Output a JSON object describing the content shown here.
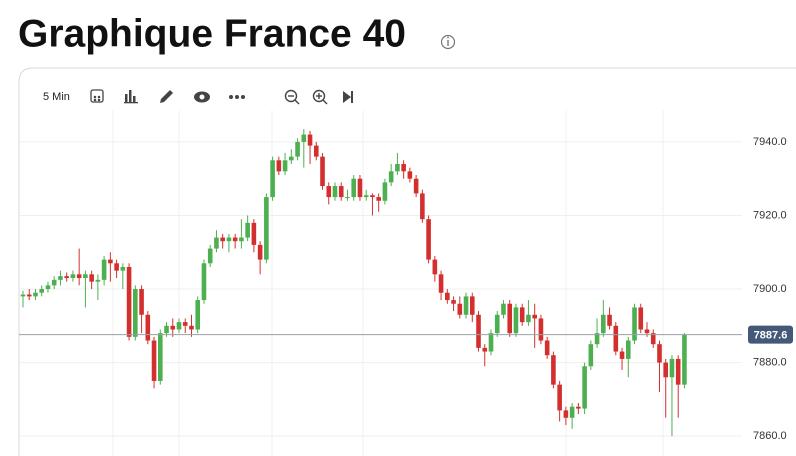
{
  "toolbar": {
    "interval": "5 Min"
  },
  "chart_data": {
    "type": "candlestick",
    "title": "Graphique France 40",
    "up_color": "#4caf50",
    "down_color": "#d32f2f",
    "ylim": [
      7854.6,
      7960.1
    ],
    "yticks": [
      {
        "value": 7860,
        "label": "7860.0"
      },
      {
        "value": 7880,
        "label": "7880.0"
      },
      {
        "value": 7900,
        "label": "7900.0"
      },
      {
        "value": 7920,
        "label": "7920.0"
      },
      {
        "value": 7940,
        "label": "7940.0"
      }
    ],
    "grid": true,
    "last_price": 7887.6,
    "open": [
      7898,
      7898.5,
      7898,
      7899,
      7900,
      7901,
      7902.5,
      7903.5,
      7903,
      7904,
      7903,
      7904,
      7902,
      7902.5,
      7908,
      7907,
      7905,
      7906,
      7887,
      7900,
      7893,
      7886,
      7875,
      7888,
      7890,
      7889,
      7891,
      7890,
      7889,
      7897,
      7907,
      7911,
      7914,
      7913,
      7914,
      7913,
      7914,
      7918,
      7912,
      7908,
      7925,
      7935,
      7932,
      7935,
      7936,
      7940,
      7942,
      7939,
      7936,
      7928,
      7925,
      7928,
      7925,
      7925,
      7930,
      7925,
      7925.5,
      7925,
      7924,
      7929,
      7932,
      7934,
      7932,
      7930,
      7926,
      7919,
      7908,
      7904,
      7899,
      7897,
      7896,
      7893,
      7898,
      7893,
      7884,
      7883,
      7888,
      7893,
      7896,
      7888,
      7895,
      7891,
      7893,
      7892,
      7886,
      7882,
      7874,
      7867,
      7865,
      7868,
      7867.5,
      7879,
      7885,
      7888,
      7893,
      7890,
      7883,
      7881,
      7886,
      7895,
      7889,
      7888,
      7885,
      7880,
      7876,
      7881,
      7874
    ],
    "high": [
      7899.5,
      7900,
      7900,
      7901,
      7902,
      7903.5,
      7905,
      7904.5,
      7905,
      7911,
      7905,
      7905,
      7904,
      7909,
      7910,
      7908,
      7907,
      7907,
      7901,
      7901,
      7894,
      7887,
      7889,
      7891,
      7892,
      7892,
      7892,
      7893,
      7898,
      7908,
      7912,
      7916,
      7915,
      7915,
      7915,
      7919,
      7920,
      7919,
      7913,
      7926,
      7936,
      7936,
      7937,
      7938,
      7941,
      7943.5,
      7943,
      7940,
      7937,
      7929,
      7929,
      7929,
      7927,
      7931,
      7931,
      7927,
      7926,
      7926,
      7930,
      7934,
      7937,
      7935,
      7933,
      7931,
      7927,
      7920,
      7909,
      7905,
      7900,
      7898,
      7898,
      7899,
      7899,
      7894,
      7885,
      7889,
      7894,
      7897,
      7897,
      7896,
      7896,
      7897,
      7896,
      7893,
      7887,
      7883,
      7875,
      7868,
      7869,
      7869,
      7880,
      7886,
      7892,
      7897,
      7895,
      7891,
      7884,
      7887,
      7896,
      7896,
      7891,
      7889,
      7886,
      7881,
      7882,
      7882,
      7888
    ],
    "low": [
      7895,
      7897,
      7897,
      7898,
      7899,
      7900,
      7901,
      7902,
      7902,
      7901,
      7895,
      7900,
      7897,
      7901,
      7902,
      7903,
      7900,
      7886,
      7886,
      7888,
      7885,
      7873,
      7874,
      7887,
      7887,
      7888,
      7888,
      7887,
      7888,
      7896,
      7906,
      7910,
      7911,
      7910,
      7911,
      7911,
      7913,
      7910,
      7904,
      7907,
      7924,
      7931,
      7931,
      7934,
      7935,
      7933,
      7934,
      7935,
      7927,
      7923,
      7924,
      7924,
      7924,
      7924,
      7924,
      7924,
      7920,
      7921,
      7923,
      7928,
      7931,
      7930,
      7929,
      7925,
      7918,
      7907,
      7902,
      7897,
      7896,
      7894,
      7892,
      7892,
      7891,
      7883,
      7879,
      7882,
      7887,
      7892,
      7887,
      7887,
      7890,
      7890,
      7884,
      7885,
      7881,
      7873,
      7864,
      7863,
      7862,
      7866,
      7866,
      7878,
      7884,
      7887,
      7889,
      7882,
      7878,
      7876,
      7885,
      7888,
      7887,
      7884,
      7872,
      7865,
      7860,
      7865,
      7873
    ],
    "close": [
      7898.5,
      7898,
      7899,
      7900,
      7901,
      7902.5,
      7903.5,
      7903,
      7904,
      7903,
      7904,
      7902,
      7902.5,
      7908,
      7907,
      7905,
      7906,
      7887,
      7900,
      7893,
      7886,
      7875,
      7888,
      7890,
      7889,
      7891,
      7890,
      7889,
      7897,
      7907,
      7911,
      7914,
      7913,
      7914,
      7913,
      7914,
      7918,
      7912,
      7908,
      7925,
      7935,
      7932,
      7935,
      7936,
      7940,
      7942,
      7939,
      7936,
      7928,
      7925,
      7928,
      7925,
      7925,
      7930,
      7925,
      7925.5,
      7925,
      7924,
      7929,
      7932,
      7934,
      7932,
      7930,
      7926,
      7919,
      7908,
      7904,
      7899,
      7897,
      7896,
      7893,
      7898,
      7893,
      7884,
      7883,
      7888,
      7893,
      7896,
      7888,
      7895,
      7891,
      7893,
      7892,
      7886,
      7882,
      7874,
      7867,
      7865,
      7868,
      7867.5,
      7879,
      7885,
      7888,
      7893,
      7890,
      7883,
      7881,
      7886,
      7895,
      7889,
      7888,
      7885,
      7880,
      7876,
      7881,
      7874,
      7887.6
    ]
  }
}
